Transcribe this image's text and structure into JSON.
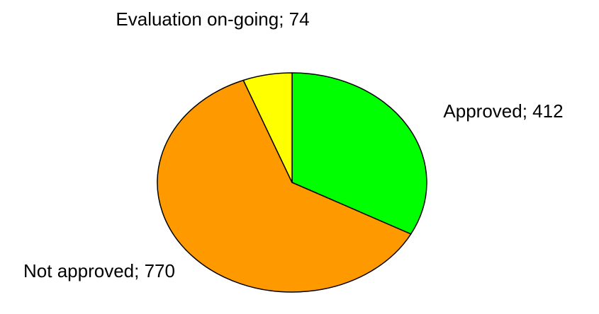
{
  "chart_data": {
    "type": "pie",
    "values": [
      412,
      770,
      74
    ],
    "value_labels": [
      "Approved; 412",
      "Not approved; 770",
      "Evaluation on-going; 74"
    ],
    "colors": [
      "#00ff00",
      "#ff9900",
      "#ffff00"
    ]
  }
}
